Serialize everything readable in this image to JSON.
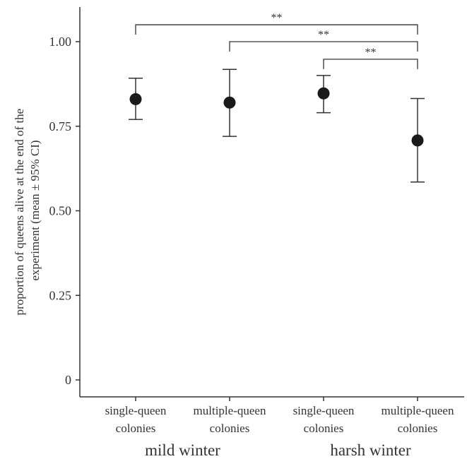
{
  "chart_data": {
    "type": "scatter",
    "ylabel_lines": [
      "proportion of queens alive at the end of the",
      "experiment (mean ± 95% CI)"
    ],
    "ylim": [
      0,
      1.1
    ],
    "yticks": [
      0,
      0.25,
      0.5,
      0.75,
      1.0
    ],
    "ytick_labels": [
      "0",
      "0.25",
      "0.50",
      "0.75",
      "1.00"
    ],
    "grid": false,
    "categories": [
      {
        "line1": "single-queen",
        "line2": "colonies"
      },
      {
        "line1": "multiple-queen",
        "line2": "colonies"
      },
      {
        "line1": "single-queen",
        "line2": "colonies"
      },
      {
        "line1": "multiple-queen",
        "line2": "colonies"
      }
    ],
    "groups": [
      {
        "label": "mild winter",
        "categories": [
          0,
          1
        ]
      },
      {
        "label": "harsh winter",
        "categories": [
          2,
          3
        ]
      }
    ],
    "points": [
      {
        "category": 0,
        "mean": 0.83,
        "ci_low": 0.77,
        "ci_high": 0.892
      },
      {
        "category": 1,
        "mean": 0.82,
        "ci_low": 0.72,
        "ci_high": 0.918
      },
      {
        "category": 2,
        "mean": 0.847,
        "ci_low": 0.79,
        "ci_high": 0.9
      },
      {
        "category": 3,
        "mean": 0.708,
        "ci_low": 0.585,
        "ci_high": 0.832
      }
    ],
    "significance": [
      {
        "from": 0,
        "to": 3,
        "label": "**",
        "y": 1.05
      },
      {
        "from": 1,
        "to": 3,
        "label": "**",
        "y": 1.0
      },
      {
        "from": 2,
        "to": 3,
        "label": "**",
        "y": 0.948
      }
    ]
  }
}
